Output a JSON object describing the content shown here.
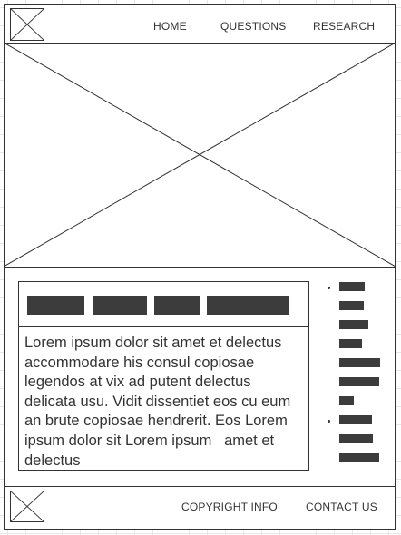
{
  "header": {
    "logo_icon": "image-placeholder-icon",
    "nav": [
      {
        "label": "HOME"
      },
      {
        "label": "QUESTIONS"
      },
      {
        "label": "RESEARCH"
      }
    ]
  },
  "hero": {
    "icon": "image-placeholder-icon"
  },
  "content": {
    "tabs": [
      {
        "label": ""
      },
      {
        "label": ""
      },
      {
        "label": ""
      },
      {
        "label": ""
      }
    ],
    "body_text": "Lorem ipsum dolor sit amet et delectus accommodare his consul copiosae legendos at vix ad putent delectus delicata usu. Vidit dissentiet eos cu eum an brute copiosae hendrerit. Eos Lorem ipsum dolor sit Lorem ipsum   amet et delectus"
  },
  "sidebar": {
    "groups": [
      {
        "bullet": true,
        "items": 7
      },
      {
        "bullet": true,
        "items": 3
      }
    ]
  },
  "footer": {
    "logo_icon": "image-placeholder-icon",
    "links": [
      {
        "label": "COPYRIGHT INFO"
      },
      {
        "label": "CONTACT US"
      }
    ]
  },
  "colors": {
    "stroke": "#333333",
    "block_fill": "#3c3c3c",
    "grid": "#e6e6e6"
  }
}
